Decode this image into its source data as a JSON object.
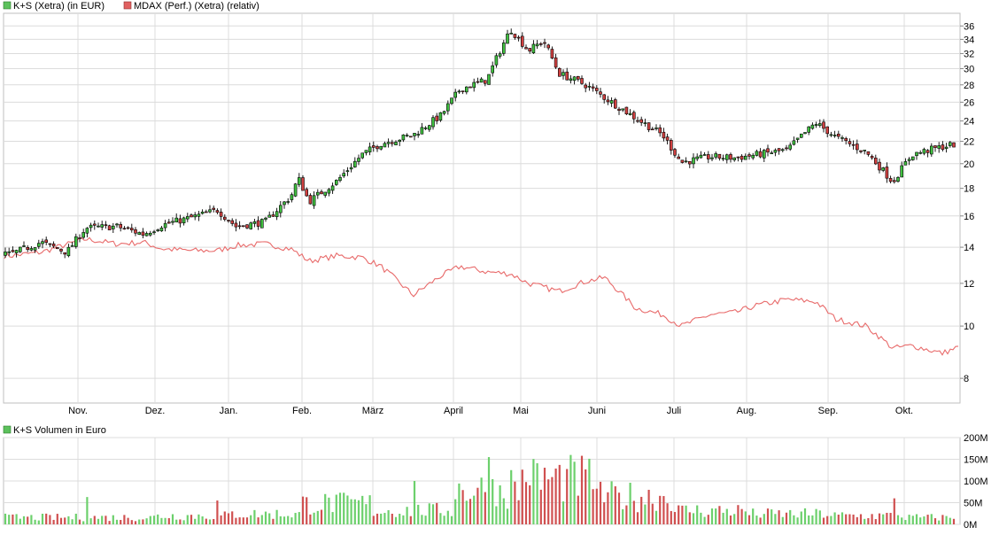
{
  "chart_data": [
    {
      "type": "candlestick",
      "legend": [
        {
          "label": "K+S (Xetra) (in EUR)",
          "color": "#5cc15c"
        },
        {
          "label": "MDAX (Perf.) (Xetra) (relativ)",
          "color": "#e06060"
        }
      ],
      "y_scale": "log",
      "ylim": [
        7.2,
        38
      ],
      "y_ticks": [
        8,
        10,
        12,
        14,
        16,
        18,
        20,
        22,
        24,
        26,
        28,
        30,
        32,
        34,
        36
      ],
      "x_ticks": [
        "Nov.",
        "Dez.",
        "Jan.",
        "Feb.",
        "März",
        "April",
        "Mai",
        "Juni",
        "Juli",
        "Aug.",
        "Sep.",
        "Okt."
      ],
      "series": [
        {
          "name": "K+S (Xetra) (in EUR)",
          "type": "candlestick",
          "up_color": "#3fbf3f",
          "down_color": "#d04040",
          "close_anchors": [
            {
              "x": "Okt. W1",
              "value": 13.6
            },
            {
              "x": "Okt. W3",
              "value": 14.3
            },
            {
              "x": "Okt. E",
              "value": 13.7
            },
            {
              "x": "Nov. W1",
              "value": 15.2
            },
            {
              "x": "Nov. M",
              "value": 15.3
            },
            {
              "x": "Nov. E",
              "value": 14.8
            },
            {
              "x": "Dez. W1",
              "value": 15.4
            },
            {
              "x": "Dez. M",
              "value": 15.9
            },
            {
              "x": "Dez. E",
              "value": 16.4
            },
            {
              "x": "Jan. W1",
              "value": 15.3
            },
            {
              "x": "Jan. M",
              "value": 15.6
            },
            {
              "x": "Jan. E",
              "value": 17.4
            },
            {
              "x": "Jan. E2",
              "value": 18.8
            },
            {
              "x": "Feb. W1",
              "value": 17.0
            },
            {
              "x": "Feb. M",
              "value": 18.6
            },
            {
              "x": "Feb. E",
              "value": 20.8
            },
            {
              "x": "März W1",
              "value": 21.8
            },
            {
              "x": "März M",
              "value": 22.6
            },
            {
              "x": "März E",
              "value": 24.6
            },
            {
              "x": "April W1",
              "value": 27.5
            },
            {
              "x": "April M",
              "value": 28.6
            },
            {
              "x": "April E",
              "value": 35.5
            },
            {
              "x": "Mai W1",
              "value": 32.4
            },
            {
              "x": "Mai W2",
              "value": 33.8
            },
            {
              "x": "Mai M",
              "value": 29.4
            },
            {
              "x": "Mai E",
              "value": 28.0
            },
            {
              "x": "Juni W1",
              "value": 26.5
            },
            {
              "x": "Juni M",
              "value": 24.3
            },
            {
              "x": "Juni E",
              "value": 22.6
            },
            {
              "x": "Juli W1",
              "value": 20.1
            },
            {
              "x": "Juli M",
              "value": 20.6
            },
            {
              "x": "Juli E",
              "value": 20.5
            },
            {
              "x": "Aug. M",
              "value": 21.2
            },
            {
              "x": "Aug. E",
              "value": 23.8
            },
            {
              "x": "Sep. W1",
              "value": 22.4
            },
            {
              "x": "Sep. M",
              "value": 21.0
            },
            {
              "x": "Sep. E",
              "value": 18.5
            },
            {
              "x": "Okt. W1",
              "value": 20.8
            },
            {
              "x": "Okt. M",
              "value": 21.5
            },
            {
              "x": "Okt. E",
              "value": 22.0
            }
          ]
        },
        {
          "name": "MDAX (Perf.) (Xetra) (relativ)",
          "type": "line",
          "color": "#e86a6a",
          "anchors": [
            {
              "x": "Okt. W1",
              "value": 13.5
            },
            {
              "x": "Okt. M",
              "value": 13.7
            },
            {
              "x": "Nov. W1",
              "value": 14.5
            },
            {
              "x": "Nov. M",
              "value": 14.2
            },
            {
              "x": "Nov. E",
              "value": 14.3
            },
            {
              "x": "Dez. W1",
              "value": 13.9
            },
            {
              "x": "Dez. M",
              "value": 13.8
            },
            {
              "x": "Dez. E",
              "value": 13.8
            },
            {
              "x": "Jan. W1",
              "value": 14.1
            },
            {
              "x": "Jan. M",
              "value": 14.2
            },
            {
              "x": "Jan. E",
              "value": 13.9
            },
            {
              "x": "Feb. W1",
              "value": 13.2
            },
            {
              "x": "Feb. M",
              "value": 13.5
            },
            {
              "x": "Feb. E",
              "value": 13.4
            },
            {
              "x": "März W1",
              "value": 12.9
            },
            {
              "x": "März M",
              "value": 11.4
            },
            {
              "x": "März E",
              "value": 12.4
            },
            {
              "x": "April W1",
              "value": 12.9
            },
            {
              "x": "April M",
              "value": 12.6
            },
            {
              "x": "April E",
              "value": 12.5
            },
            {
              "x": "Mai W1",
              "value": 12.0
            },
            {
              "x": "Mai M",
              "value": 11.6
            },
            {
              "x": "Mai E",
              "value": 12.1
            },
            {
              "x": "Juni W1",
              "value": 12.3
            },
            {
              "x": "Juni M",
              "value": 10.8
            },
            {
              "x": "Juni E",
              "value": 10.5
            },
            {
              "x": "Juli W1",
              "value": 10.0
            },
            {
              "x": "Juli M",
              "value": 10.5
            },
            {
              "x": "Juli E",
              "value": 10.6
            },
            {
              "x": "Aug. W1",
              "value": 10.9
            },
            {
              "x": "Aug. M",
              "value": 11.2
            },
            {
              "x": "Aug. E",
              "value": 11.1
            },
            {
              "x": "Sep. W1",
              "value": 10.3
            },
            {
              "x": "Sep. M",
              "value": 10.0
            },
            {
              "x": "Sep. E",
              "value": 9.1
            },
            {
              "x": "Okt. W1",
              "value": 9.2
            },
            {
              "x": "Okt. M",
              "value": 8.9
            },
            {
              "x": "Okt. E",
              "value": 9.3
            }
          ]
        }
      ]
    },
    {
      "type": "bar",
      "legend": [
        {
          "label": "K+S Volumen in Euro",
          "color": "#5cc15c"
        }
      ],
      "ylim": [
        0,
        200
      ],
      "y_ticks": [
        "0M",
        "50M",
        "100M",
        "150M",
        "200M"
      ],
      "y_tick_values": [
        0,
        50,
        100,
        150,
        200
      ],
      "unit": "M",
      "series": [
        {
          "name": "K+S Volumen in Euro",
          "up_color": "#6cd06c",
          "down_color": "#d05050",
          "typical_values_M": [
            20,
            25,
            30,
            60,
            40,
            100,
            130,
            80,
            40,
            30,
            25,
            20
          ],
          "peaks_M": [
            {
              "x": "April M",
              "value": 155
            },
            {
              "x": "April E",
              "value": 125
            },
            {
              "x": "März M",
              "value": 100
            },
            {
              "x": "Nov. W1",
              "value": 63
            },
            {
              "x": "Dez. E",
              "value": 55
            },
            {
              "x": "Mai W1",
              "value": 90
            },
            {
              "x": "Sep. E",
              "value": 60
            }
          ]
        }
      ]
    }
  ]
}
